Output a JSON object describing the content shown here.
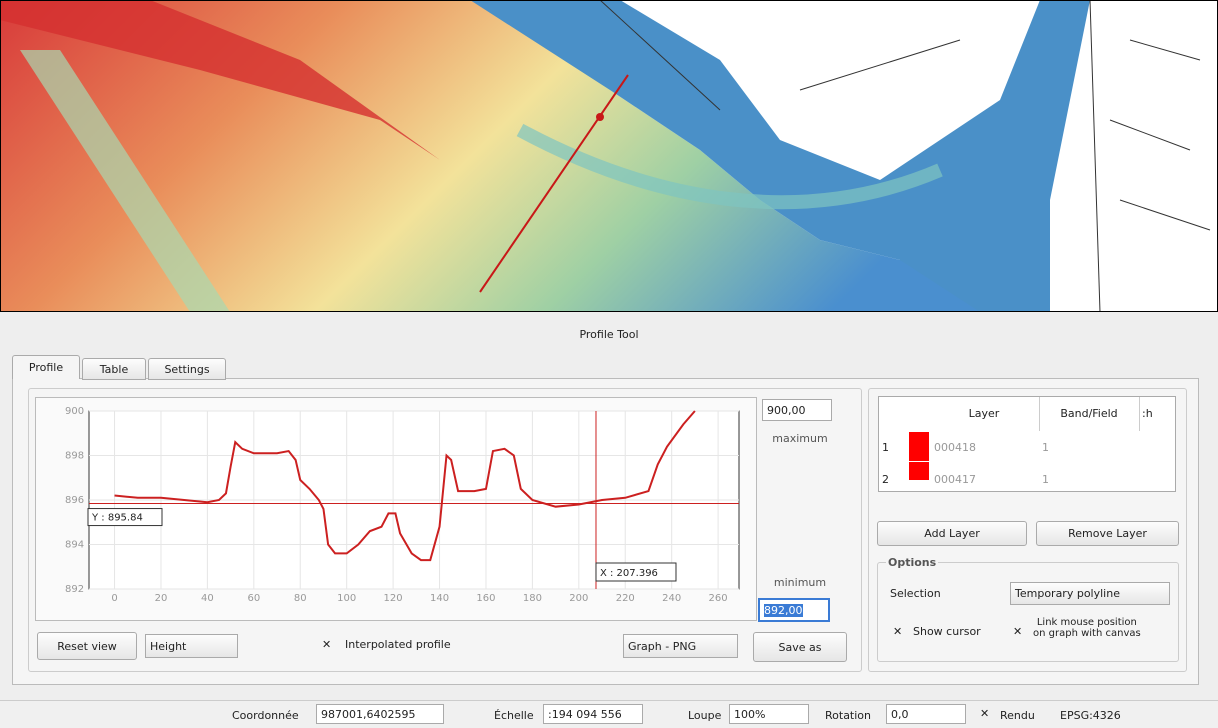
{
  "window": {
    "title": "Profile Tool",
    "tabs": [
      "Profile",
      "Table",
      "Settings"
    ]
  },
  "profile_plot": {
    "xlim": [
      -11,
      269
    ],
    "ylim": [
      892,
      900
    ],
    "xticks": [
      0,
      20,
      40,
      60,
      80,
      100,
      120,
      140,
      160,
      180,
      200,
      220,
      240,
      260
    ],
    "yticks": [
      892,
      894,
      896,
      898,
      900
    ],
    "line_color": "#cc2020",
    "x": [
      0,
      10,
      20,
      30,
      40,
      45,
      48,
      50,
      52,
      55,
      60,
      70,
      75,
      78,
      80,
      84,
      88,
      90,
      92,
      95,
      100,
      105,
      110,
      115,
      118,
      121,
      123,
      128,
      132,
      136,
      140,
      143,
      145,
      148,
      155,
      160,
      163,
      168,
      172,
      175,
      180,
      190,
      200,
      210,
      220,
      230,
      234,
      238,
      245,
      250
    ],
    "y": [
      896.2,
      896.1,
      896.1,
      896.0,
      895.9,
      896.0,
      896.3,
      897.5,
      898.6,
      898.3,
      898.1,
      898.1,
      898.2,
      897.8,
      896.9,
      896.5,
      896.0,
      895.6,
      894.0,
      893.6,
      893.6,
      894.0,
      894.6,
      894.8,
      895.4,
      895.4,
      894.5,
      893.6,
      893.3,
      893.3,
      894.8,
      898.0,
      897.8,
      896.4,
      896.4,
      896.5,
      898.2,
      898.3,
      898.0,
      896.5,
      896.0,
      895.7,
      895.8,
      896.0,
      896.1,
      896.4,
      897.6,
      898.4,
      899.4,
      900.0
    ],
    "cursor": {
      "x": {
        "value": 207.396,
        "label": "X : 207.396"
      },
      "y": {
        "value": 895.84,
        "label": "Y : 895.84"
      }
    }
  },
  "scale_controls": {
    "maximum_value": "900,00",
    "maximum_label": "maximum",
    "minimum_label": "minimum",
    "minimum_value": "892,00"
  },
  "bottom_controls": {
    "reset": "Reset view",
    "mode": "Height",
    "interpolated": "Interpolated profile",
    "export": "Graph - PNG",
    "save": "Save as"
  },
  "layer_table": {
    "headers": [
      "Layer",
      "Band/Field",
      ":h"
    ],
    "rows": [
      [
        "1",
        "000418",
        "1"
      ],
      [
        "2",
        "000417",
        "1"
      ]
    ]
  },
  "layer_buttons": {
    "add": "Add Layer",
    "remove": "Remove Layer"
  },
  "options": {
    "title": "Options",
    "selection_label": "Selection",
    "selection_value": "Temporary polyline",
    "show_cursor": "Show cursor",
    "link_line1": "Link mouse position",
    "link_line2": "on graph with canvas"
  },
  "status_bar": {
    "coord_label": "Coordonnée",
    "coord_value": "987001,6402595",
    "scale_label": "Échelle",
    "scale_value": ":194 094 556",
    "magnifier_label": "Loupe",
    "magnifier_value": "100%",
    "rotation_label": "Rotation",
    "rotation_value": "0,0",
    "render_label": "Rendu",
    "crs": "EPSG:4326"
  }
}
